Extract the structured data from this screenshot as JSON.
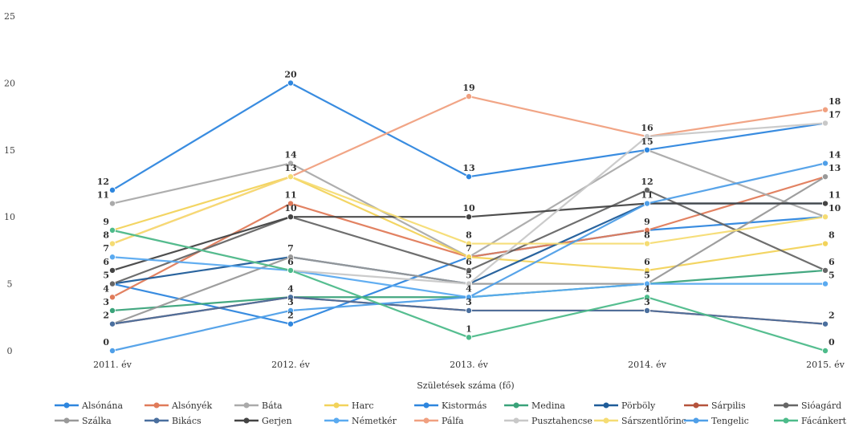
{
  "chart_data": {
    "type": "line",
    "title": "",
    "xlabel": "Születések száma (fő)",
    "ylabel": "",
    "categories": [
      "2011. év",
      "2012. év",
      "2013. év",
      "2014. év",
      "2015. év"
    ],
    "yticks": [
      0,
      5,
      10,
      15,
      20,
      25
    ],
    "ylim": [
      0,
      25
    ],
    "grid": false,
    "legend_position": "bottom",
    "series": [
      {
        "name": "Alsónána",
        "color": "#2e86de",
        "values": [
          5,
          2,
          7,
          9,
          10
        ]
      },
      {
        "name": "Alsónyék",
        "color": "#e07b5a",
        "values": [
          4,
          11,
          7,
          9,
          13
        ]
      },
      {
        "name": "Báta",
        "color": "#aaaaaa",
        "values": [
          11,
          14,
          7,
          15,
          10
        ]
      },
      {
        "name": "Harc",
        "color": "#f2d35b",
        "values": [
          9,
          13,
          7,
          6,
          8
        ]
      },
      {
        "name": "Kistormás",
        "color": "#2e86de",
        "values": [
          12,
          20,
          13,
          15,
          17
        ]
      },
      {
        "name": "Medina",
        "color": "#3aa37a",
        "values": [
          3,
          4,
          4,
          5,
          6
        ]
      },
      {
        "name": "Pörböly",
        "color": "#1f5c99",
        "values": [
          5,
          7,
          5,
          11,
          11
        ]
      },
      {
        "name": "Sárpilis",
        "color": "#b5533c",
        "values": [
          2,
          4,
          3,
          3,
          2
        ]
      },
      {
        "name": "Sióagárd",
        "color": "#666666",
        "values": [
          5,
          10,
          6,
          12,
          6
        ]
      },
      {
        "name": "Szálka",
        "color": "#999999",
        "values": [
          2,
          7,
          5,
          5,
          13
        ]
      },
      {
        "name": "Bikács",
        "color": "#4a6f9e",
        "values": [
          2,
          4,
          3,
          3,
          2
        ]
      },
      {
        "name": "Gerjen",
        "color": "#444444",
        "values": [
          6,
          10,
          10,
          11,
          11
        ]
      },
      {
        "name": "Németkér",
        "color": "#5aaaf0",
        "values": [
          7,
          6,
          4,
          5,
          5
        ]
      },
      {
        "name": "Pálfa",
        "color": "#f0a080",
        "values": [
          8,
          13,
          19,
          16,
          18
        ]
      },
      {
        "name": "Pusztahencse",
        "color": "#c8c8c8",
        "values": [
          9,
          6,
          5,
          16,
          17
        ]
      },
      {
        "name": "Sárszentlőrinc",
        "color": "#f5dc73",
        "values": [
          8,
          13,
          8,
          8,
          10
        ]
      },
      {
        "name": "Tengelic",
        "color": "#4f9fe8",
        "values": [
          0,
          3,
          4,
          11,
          14
        ]
      },
      {
        "name": "Fácánkert",
        "color": "#4dbb8a",
        "values": [
          9,
          6,
          1,
          4,
          0
        ]
      }
    ]
  }
}
